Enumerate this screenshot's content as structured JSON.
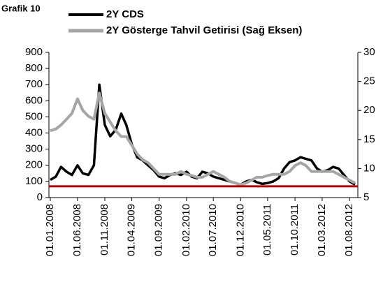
{
  "chart_data": {
    "type": "line",
    "title": "Grafik 10",
    "x": [
      "01.01.2008",
      "01.02.2008",
      "01.03.2008",
      "01.04.2008",
      "01.05.2008",
      "01.06.2008",
      "01.07.2008",
      "01.08.2008",
      "01.09.2008",
      "01.10.2008",
      "01.11.2008",
      "01.12.2008",
      "01.01.2009",
      "01.02.2009",
      "01.03.2009",
      "01.04.2009",
      "01.05.2009",
      "01.06.2009",
      "01.07.2009",
      "01.08.2009",
      "01.09.2009",
      "01.10.2009",
      "01.11.2009",
      "01.12.2009",
      "01.01.2010",
      "01.02.2010",
      "01.03.2010",
      "01.04.2010",
      "01.05.2010",
      "01.06.2010",
      "01.07.2010",
      "01.08.2010",
      "01.09.2010",
      "01.10.2010",
      "01.11.2010",
      "01.12.2010",
      "01.01.2011",
      "01.02.2011",
      "01.03.2011",
      "01.04.2011",
      "01.05.2011",
      "01.06.2011",
      "01.07.2011",
      "01.08.2011",
      "01.09.2011",
      "01.10.2011",
      "01.11.2011",
      "01.12.2011",
      "01.01.2012",
      "01.02.2012",
      "01.03.2012",
      "01.04.2012",
      "01.05.2012",
      "01.06.2012",
      "01.07.2012",
      "01.08.2012",
      "01.09.2012"
    ],
    "series": [
      {
        "name": "2Y CDS",
        "color": "#000000",
        "values": [
          110,
          130,
          190,
          160,
          140,
          200,
          150,
          140,
          200,
          700,
          450,
          380,
          420,
          520,
          450,
          330,
          250,
          230,
          200,
          170,
          130,
          120,
          140,
          150,
          140,
          160,
          130,
          120,
          160,
          150,
          130,
          120,
          110,
          100,
          90,
          80,
          100,
          110,
          95,
          85,
          90,
          100,
          120,
          180,
          220,
          230,
          250,
          240,
          230,
          180,
          160,
          170,
          190,
          180,
          140,
          100,
          80
        ]
      },
      {
        "name": "2Y Gösterge Tahvil Getirisi (Sağ Eksen)",
        "color": "#a6a6a6",
        "axis": "y2",
        "values": [
          16.5,
          16.8,
          17.5,
          18.5,
          19.5,
          22,
          20,
          19,
          18.5,
          23,
          19.5,
          18,
          16.5,
          15.5,
          15.5,
          14,
          12.5,
          11.5,
          11,
          10,
          9,
          9,
          9,
          9,
          9.5,
          9,
          8.8,
          8.5,
          8.5,
          9,
          9.5,
          9,
          8.5,
          7.8,
          7.5,
          7.2,
          7.5,
          8,
          8.5,
          8.5,
          8.8,
          9,
          9,
          9,
          9.5,
          10.5,
          11,
          10.5,
          9.5,
          9.5,
          9.5,
          9.5,
          9.5,
          9,
          8.5,
          8,
          7.5
        ]
      }
    ],
    "reference_line": {
      "value": 70,
      "color": "#c00000"
    },
    "xlim": [
      "01.01.2008",
      "01.09.2012"
    ],
    "xticks": [
      "01.01.2008",
      "01.06.2008",
      "01.11.2008",
      "01.04.2009",
      "01.09.2009",
      "01.02.2010",
      "01.07.2010",
      "01.12.2010",
      "01.05.2011",
      "01.10.2011",
      "01.03.2012",
      "01.08.2012"
    ],
    "ylim": [
      0,
      900
    ],
    "yticks": [
      0,
      100,
      200,
      300,
      400,
      500,
      600,
      700,
      800,
      900
    ],
    "y2lim": [
      5,
      30
    ],
    "y2ticks": [
      5,
      10,
      15,
      20,
      25,
      30
    ]
  }
}
